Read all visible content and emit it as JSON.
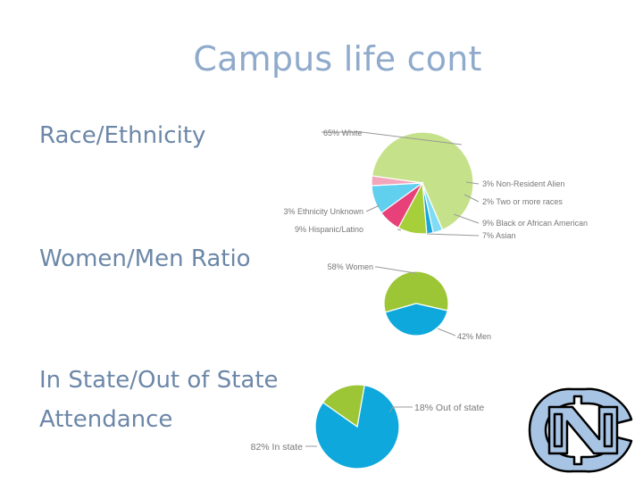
{
  "slide": {
    "title": "Campus life cont",
    "labels": {
      "race": "Race/Ethnicity",
      "gender": "Women/Men Ratio",
      "state_line1": "In State/Out of State",
      "state_line2": "Attendance"
    }
  },
  "chart_data": [
    {
      "type": "pie",
      "title": "",
      "slices": [
        {
          "label": "65% White",
          "value": 65,
          "color": "#c5e28a"
        },
        {
          "label": "3% Non-Resident Alien",
          "value": 3,
          "color": "#7fdcf4"
        },
        {
          "label": "2% Two or more races",
          "value": 2,
          "color": "#17a7d8"
        },
        {
          "label": "9% Black or African American",
          "value": 9,
          "color": "#a6cf3a"
        },
        {
          "label": "7% Asian",
          "value": 7,
          "color": "#e8417a"
        },
        {
          "label": "9% Hispanic/Latino",
          "value": 9,
          "color": "#61d0ef"
        },
        {
          "label": "3% Ethnicity Unknown",
          "value": 3,
          "color": "#f2a5bb"
        }
      ]
    },
    {
      "type": "pie",
      "title": "",
      "slices": [
        {
          "label": "58% Women",
          "value": 58,
          "color": "#9dc636"
        },
        {
          "label": "42% Men",
          "value": 42,
          "color": "#0ea8dc"
        }
      ]
    },
    {
      "type": "pie",
      "title": "",
      "slices": [
        {
          "label": "82% In state",
          "value": 82,
          "color": "#0ea8dc"
        },
        {
          "label": "18% Out of state",
          "value": 18,
          "color": "#9dc636"
        }
      ]
    }
  ],
  "logo": {
    "icon": "nc-logo-icon",
    "color": "#a7c4e4",
    "stroke": "#000000"
  }
}
